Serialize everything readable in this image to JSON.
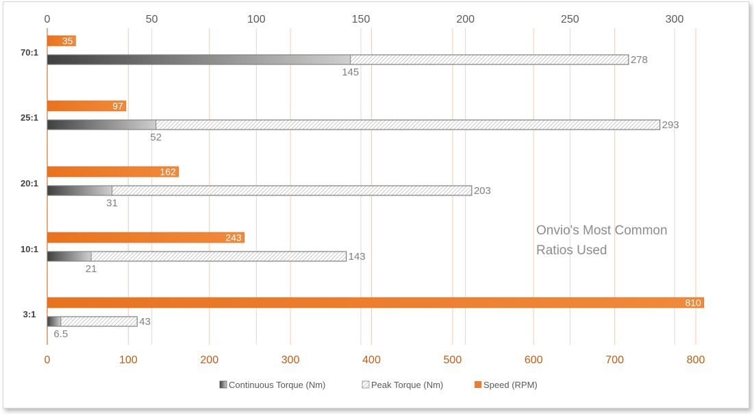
{
  "chart_data": {
    "type": "bar",
    "orientation": "horizontal",
    "categories": [
      "70:1",
      "25:1",
      "20:1",
      "10:1",
      "3:1"
    ],
    "series": [
      {
        "name": "Continuous Torque (Nm)",
        "axis": "top",
        "values": [
          145,
          52,
          31,
          21,
          6.5
        ],
        "labels": [
          "145",
          "52",
          "31",
          "21",
          "6.5"
        ],
        "color": "#404040"
      },
      {
        "name": "Peak Torque (Nm)",
        "axis": "top",
        "values": [
          278,
          293,
          203,
          143,
          43
        ],
        "labels": [
          "278",
          "293",
          "203",
          "143",
          "43"
        ],
        "color": "#7f7f7f"
      },
      {
        "name": "Speed (RPM)",
        "axis": "bottom",
        "values": [
          35,
          97,
          162,
          243,
          810
        ],
        "labels": [
          "35",
          "97",
          "162",
          "243",
          "810"
        ],
        "color": "#ed7d31"
      }
    ],
    "top_axis": {
      "range": [
        0,
        300
      ],
      "ticks": [
        "0",
        "50",
        "100",
        "150",
        "200",
        "250",
        "300"
      ]
    },
    "bottom_axis": {
      "range": [
        0,
        800
      ],
      "ticks": [
        "0",
        "100",
        "200",
        "300",
        "400",
        "500",
        "600",
        "700",
        "800"
      ]
    },
    "annotation": [
      "Onvio's Most Common",
      "Ratios Used"
    ],
    "legend_position": "bottom",
    "grid": true,
    "colors": {
      "speed": "#ed7d31",
      "speed_dark": "#c55a11",
      "continuous": "#404040",
      "peak_hatch": "#a6a6a6",
      "grid_top": "#d9d9d9",
      "grid_bottom": "#f8cbad"
    }
  }
}
